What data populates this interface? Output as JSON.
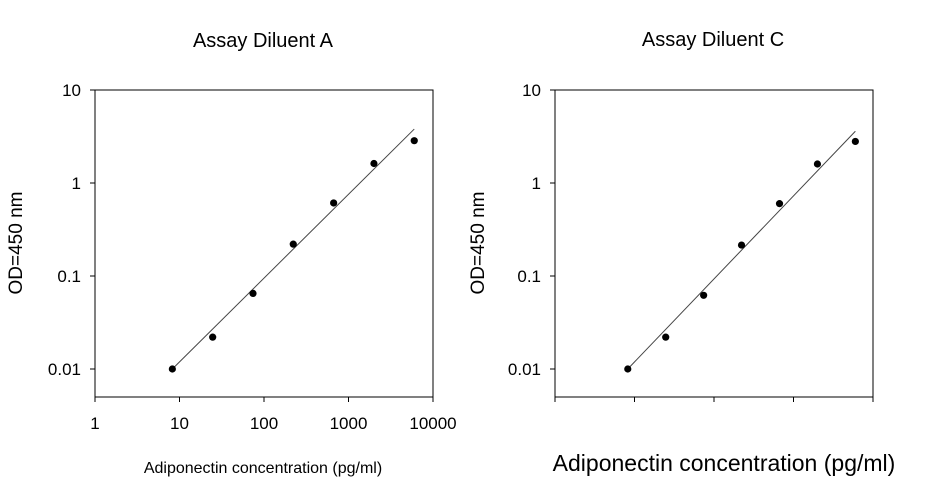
{
  "chart_data": [
    {
      "type": "scatter",
      "title": "Assay Diluent A",
      "xlabel": "Adiponectin concentration (pg/ml)",
      "ylabel": "OD=450 nm",
      "x_scale": "log",
      "y_scale": "log",
      "xlim": [
        1,
        10000
      ],
      "ylim": [
        0.01,
        10
      ],
      "x_ticks": [
        "1",
        "10",
        "100",
        "1000",
        "10000"
      ],
      "y_ticks": [
        "10",
        "1",
        "0.1",
        "0.01"
      ],
      "grid": false,
      "series": [
        {
          "x": [
            8.23,
            24.7,
            74.1,
            222,
            667,
            2000,
            6000
          ],
          "y": [
            0.01,
            0.022,
            0.065,
            0.22,
            0.61,
            1.62,
            2.85
          ]
        }
      ],
      "fit_line": {
        "x": [
          8.23,
          6000
        ],
        "y": [
          0.01,
          3.8
        ]
      }
    },
    {
      "type": "scatter",
      "title": "Assay Diluent C",
      "xlabel": "Adiponectin concentration (pg/ml)",
      "ylabel": "OD=450 nm",
      "x_scale": "log",
      "y_scale": "log",
      "xlim": [
        1,
        10000
      ],
      "ylim": [
        0.01,
        10
      ],
      "y_ticks": [
        "10",
        "1",
        "0.1",
        "0.01"
      ],
      "grid": false,
      "series": [
        {
          "x": [
            8.23,
            24.7,
            74.1,
            222,
            667,
            2000,
            6000
          ],
          "y": [
            0.01,
            0.022,
            0.062,
            0.215,
            0.6,
            1.6,
            2.8
          ]
        }
      ],
      "fit_line": {
        "x": [
          8.23,
          6000
        ],
        "y": [
          0.01,
          3.6
        ]
      }
    }
  ]
}
